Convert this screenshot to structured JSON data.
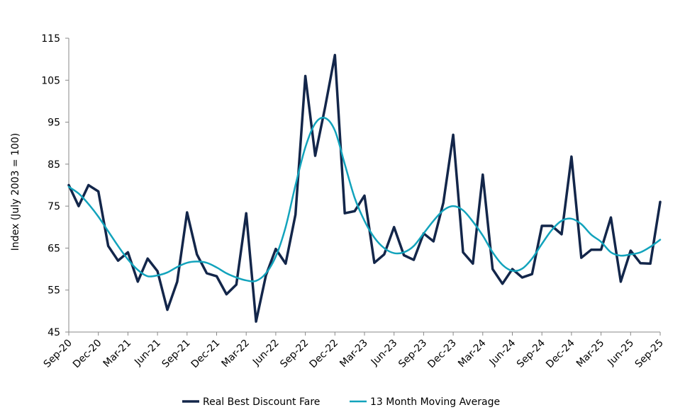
{
  "chart_data": {
    "type": "line",
    "title": "",
    "xlabel": "",
    "ylabel": "Index (July 2003 = 100)",
    "ylim": [
      45,
      115
    ],
    "yticks": [
      45,
      55,
      65,
      75,
      85,
      95,
      105,
      115
    ],
    "grid": false,
    "legend_position": "bottom",
    "x": [
      "Sep-20",
      "Oct-20",
      "Nov-20",
      "Dec-20",
      "Jan-21",
      "Feb-21",
      "Mar-21",
      "Apr-21",
      "May-21",
      "Jun-21",
      "Jul-21",
      "Aug-21",
      "Sep-21",
      "Oct-21",
      "Nov-21",
      "Dec-21",
      "Jan-22",
      "Feb-22",
      "Mar-22",
      "Apr-22",
      "May-22",
      "Jun-22",
      "Jul-22",
      "Aug-22",
      "Sep-22",
      "Oct-22",
      "Nov-22",
      "Dec-22",
      "Jan-23",
      "Feb-23",
      "Mar-23",
      "Apr-23",
      "May-23",
      "Jun-23",
      "Jul-23",
      "Aug-23",
      "Sep-23",
      "Oct-23",
      "Nov-23",
      "Dec-23",
      "Jan-24",
      "Feb-24",
      "Mar-24",
      "Apr-24",
      "May-24",
      "Jun-24",
      "Jul-24",
      "Aug-24",
      "Sep-24",
      "Oct-24",
      "Nov-24",
      "Dec-24",
      "Jan-25",
      "Feb-25",
      "Mar-25",
      "Apr-25",
      "May-25",
      "Jun-25",
      "Jul-25",
      "Aug-25",
      "Sep-25"
    ],
    "x_tick_labels": [
      "Sep-20",
      "Dec-20",
      "Mar-21",
      "Jun-21",
      "Sep-21",
      "Dec-21",
      "Mar-22",
      "Jun-22",
      "Sep-22",
      "Dec-22",
      "Mar-23",
      "Jun-23",
      "Sep-23",
      "Dec-23",
      "Mar-24",
      "Jun-24",
      "Sep-24",
      "Dec-24",
      "Mar-25",
      "Jun-25",
      "Sep-25"
    ],
    "series": [
      {
        "name": "Real Best Discount Fare",
        "color": "#13264a",
        "values": [
          80,
          75,
          80,
          78.5,
          65.5,
          62,
          64,
          57,
          62.5,
          59.5,
          50.3,
          57,
          73.5,
          63.5,
          59,
          58.3,
          54,
          56.3,
          73.3,
          47.5,
          58.5,
          64.8,
          61.3,
          73,
          106,
          87,
          98.5,
          111,
          73.3,
          73.8,
          77.5,
          61.5,
          63.5,
          70,
          63.3,
          62.2,
          68.5,
          66.6,
          75.8,
          92,
          64,
          61.3,
          82.5,
          60,
          56.5,
          60,
          58,
          58.8,
          70.3,
          70.3,
          68.3,
          86.8,
          62.7,
          64.6,
          64.6,
          72.3,
          57,
          64.4,
          61.4,
          61.3,
          76
        ]
      },
      {
        "name": "13 Month Moving Average",
        "color": "#12a3bc",
        "values": [
          79.6,
          78,
          75.5,
          72.5,
          69,
          65.5,
          62.3,
          59.8,
          58.3,
          58.5,
          59.2,
          60.5,
          61.5,
          61.8,
          61.5,
          60.4,
          59,
          58,
          57.3,
          57.2,
          59,
          63,
          70,
          80,
          89,
          94.7,
          96,
          93,
          85,
          77,
          71.5,
          67.5,
          65,
          63.8,
          64,
          65.5,
          68.5,
          71.5,
          74,
          75,
          74,
          71.3,
          68,
          64,
          61,
          59.6,
          60.1,
          62.5,
          66,
          69.3,
          71.5,
          72,
          70.7,
          68.2,
          66.5,
          64,
          63.2,
          63.5,
          64,
          65.3,
          67
        ]
      }
    ]
  }
}
